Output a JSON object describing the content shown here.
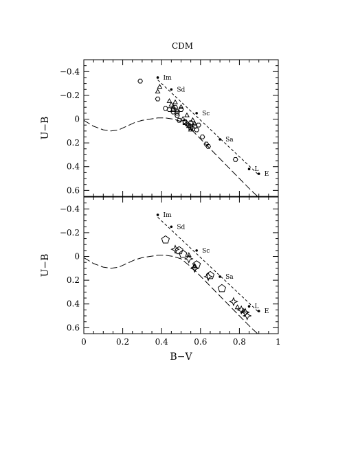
{
  "chart_data": [
    {
      "type": "scatter",
      "title": "CDM",
      "xlabel": "",
      "ylabel": "U−B",
      "xlim": [
        0,
        1
      ],
      "ylim": [
        0.65,
        -0.5
      ],
      "x_ticks": [
        0,
        0.2,
        0.4,
        0.6,
        0.8,
        1
      ],
      "y_ticks": [
        -0.4,
        -0.2,
        0,
        0.2,
        0.4,
        0.6
      ],
      "y_tick_labels": [
        "−0.4",
        "−0.2",
        "0",
        "0.2",
        "0.4",
        "0.6"
      ],
      "reference_points": [
        {
          "label": "Im",
          "x": 0.38,
          "y": -0.35
        },
        {
          "label": "Sd",
          "x": 0.45,
          "y": -0.25
        },
        {
          "label": "Sc",
          "x": 0.58,
          "y": -0.05
        },
        {
          "label": "Sa",
          "x": 0.7,
          "y": 0.17
        },
        {
          "label": "L",
          "x": 0.85,
          "y": 0.42
        },
        {
          "label": "E",
          "x": 0.9,
          "y": 0.46
        }
      ],
      "series": [
        {
          "marker": "dashed-line",
          "x": [
            0.38,
            0.9
          ],
          "y": [
            -0.33,
            0.47
          ]
        },
        {
          "marker": "long-dash-curve",
          "x": [
            0.0,
            0.05,
            0.1,
            0.14,
            0.18,
            0.22,
            0.26,
            0.3,
            0.34,
            0.38,
            0.42,
            0.46,
            0.5,
            0.56,
            0.62,
            0.68,
            0.74,
            0.8,
            0.86,
            0.9
          ],
          "y": [
            0.01,
            0.06,
            0.09,
            0.1,
            0.09,
            0.06,
            0.03,
            0.01,
            0.0,
            -0.01,
            -0.01,
            0.0,
            0.02,
            0.1,
            0.2,
            0.3,
            0.4,
            0.5,
            0.6,
            0.66
          ]
        },
        {
          "marker": "open-hexagon",
          "x": [
            0.29,
            0.38,
            0.42,
            0.44,
            0.46,
            0.47,
            0.48,
            0.49,
            0.5,
            0.52,
            0.53,
            0.54,
            0.55,
            0.56,
            0.57,
            0.58,
            0.59,
            0.61,
            0.63,
            0.64,
            0.78
          ],
          "y": [
            -0.32,
            -0.17,
            -0.09,
            -0.08,
            -0.06,
            -0.1,
            -0.03,
            0.01,
            -0.08,
            0.02,
            0.04,
            0.05,
            0.03,
            0.08,
            0.06,
            0.09,
            0.05,
            0.15,
            0.21,
            0.23,
            0.34
          ]
        },
        {
          "marker": "open-triangle",
          "x": [
            0.38,
            0.39,
            0.44,
            0.45,
            0.46,
            0.47,
            0.48,
            0.5,
            0.51,
            0.53,
            0.54,
            0.55,
            0.56,
            0.57
          ],
          "y": [
            -0.23,
            -0.27,
            -0.15,
            -0.12,
            -0.1,
            -0.14,
            -0.07,
            -0.1,
            0.0,
            -0.03,
            0.06,
            0.09,
            0.01,
            0.04
          ]
        },
        {
          "marker": "open-square",
          "x": [
            0.46,
            0.48,
            0.52,
            0.55
          ],
          "y": [
            -0.08,
            -0.05,
            0.03,
            0.07
          ]
        }
      ]
    },
    {
      "type": "scatter",
      "title": "",
      "xlabel": "B−V",
      "ylabel": "U−B",
      "xlim": [
        0,
        1
      ],
      "ylim": [
        0.65,
        -0.5
      ],
      "x_ticks": [
        0,
        0.2,
        0.4,
        0.6,
        0.8,
        1
      ],
      "x_tick_labels": [
        "0",
        "0.2",
        "0.4",
        "0.6",
        "0.8",
        "1"
      ],
      "y_ticks": [
        -0.4,
        -0.2,
        0,
        0.2,
        0.4,
        0.6
      ],
      "y_tick_labels": [
        "−0.4",
        "−0.2",
        "0",
        "0.2",
        "0.4",
        "0.6"
      ],
      "reference_points": [
        {
          "label": "Im",
          "x": 0.38,
          "y": -0.35
        },
        {
          "label": "Sd",
          "x": 0.45,
          "y": -0.25
        },
        {
          "label": "Sc",
          "x": 0.58,
          "y": -0.05
        },
        {
          "label": "Sa",
          "x": 0.7,
          "y": 0.17
        },
        {
          "label": "L",
          "x": 0.85,
          "y": 0.42
        },
        {
          "label": "E",
          "x": 0.9,
          "y": 0.46
        }
      ],
      "series": [
        {
          "marker": "dashed-line",
          "x": [
            0.38,
            0.9
          ],
          "y": [
            -0.33,
            0.47
          ]
        },
        {
          "marker": "long-dash-curve",
          "x": [
            0.0,
            0.05,
            0.1,
            0.14,
            0.18,
            0.22,
            0.26,
            0.3,
            0.34,
            0.38,
            0.42,
            0.46,
            0.5,
            0.56,
            0.62,
            0.68,
            0.74,
            0.8,
            0.86,
            0.9
          ],
          "y": [
            0.01,
            0.06,
            0.09,
            0.1,
            0.09,
            0.06,
            0.03,
            0.01,
            0.0,
            -0.01,
            -0.01,
            0.0,
            0.02,
            0.1,
            0.2,
            0.3,
            0.4,
            0.5,
            0.6,
            0.66
          ]
        },
        {
          "marker": "large-open-pentagon",
          "x": [
            0.42,
            0.49,
            0.51,
            0.58,
            0.65,
            0.71
          ],
          "y": [
            -0.14,
            -0.05,
            -0.02,
            0.07,
            0.16,
            0.27
          ]
        },
        {
          "marker": "open-star",
          "x": [
            0.47,
            0.54,
            0.57,
            0.64,
            0.77,
            0.81,
            0.83,
            0.84
          ],
          "y": [
            -0.06,
            0.02,
            0.1,
            0.17,
            0.38,
            0.45,
            0.47,
            0.5
          ]
        },
        {
          "marker": "open-triangle",
          "x": [
            0.54,
            0.57,
            0.79,
            0.82
          ],
          "y": [
            -0.01,
            0.08,
            0.43,
            0.46
          ]
        }
      ]
    }
  ]
}
